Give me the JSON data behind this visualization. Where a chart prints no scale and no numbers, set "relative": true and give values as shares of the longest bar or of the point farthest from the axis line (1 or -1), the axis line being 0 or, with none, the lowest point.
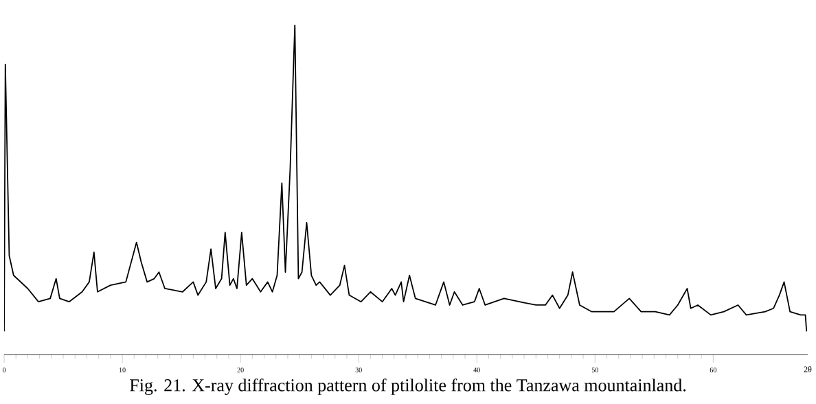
{
  "chart_data": {
    "type": "line",
    "title": "Fig. 21.  X-ray diffraction pattern of ptilolite from the Tanzawa mountainland.",
    "xlabel": "2θ",
    "relative": true,
    "xlim": [
      0,
      68
    ],
    "xticks": [
      0,
      10,
      20,
      30,
      40,
      50,
      60
    ],
    "grid": false,
    "marker": "none",
    "line_style": "solid",
    "x": [
      0,
      0.1,
      0.43,
      0.8,
      2.0,
      2.9,
      3.9,
      4.4,
      4.7,
      5.5,
      6.6,
      7.2,
      7.6,
      7.9,
      9.0,
      10.3,
      11.2,
      11.6,
      12.1,
      12.7,
      13.1,
      13.6,
      15.1,
      16.0,
      16.4,
      17.1,
      17.5,
      17.9,
      18.4,
      18.7,
      19.1,
      19.4,
      19.7,
      20.1,
      20.5,
      21.0,
      21.7,
      22.3,
      22.7,
      23.1,
      23.5,
      23.8,
      24.2,
      24.6,
      24.9,
      25.2,
      25.6,
      26.0,
      26.4,
      26.7,
      27.6,
      28.4,
      28.8,
      29.2,
      30.2,
      31.0,
      32.0,
      32.8,
      33.1,
      33.6,
      33.8,
      34.3,
      34.8,
      36.5,
      37.2,
      37.7,
      38.1,
      38.8,
      39.8,
      40.2,
      40.7,
      42.3,
      43.6,
      45.0,
      45.8,
      46.4,
      47.0,
      47.7,
      48.1,
      48.7,
      49.7,
      51.6,
      52.9,
      53.9,
      55.1,
      56.3,
      57.0,
      57.8,
      58.1,
      58.7,
      59.8,
      60.9,
      62.1,
      62.8,
      64.4,
      65.1,
      65.6,
      66.0,
      66.5,
      67.4,
      67.8,
      67.9
    ],
    "series": [
      {
        "color": "#000000",
        "values": [
          0.07,
          0.88,
          0.3,
          0.24,
          0.2,
          0.16,
          0.17,
          0.23,
          0.17,
          0.16,
          0.19,
          0.22,
          0.31,
          0.19,
          0.21,
          0.22,
          0.34,
          0.28,
          0.22,
          0.23,
          0.25,
          0.2,
          0.19,
          0.22,
          0.18,
          0.22,
          0.32,
          0.2,
          0.23,
          0.37,
          0.21,
          0.23,
          0.2,
          0.37,
          0.21,
          0.23,
          0.19,
          0.22,
          0.19,
          0.24,
          0.52,
          0.25,
          0.56,
          1.0,
          0.23,
          0.25,
          0.4,
          0.24,
          0.21,
          0.22,
          0.18,
          0.21,
          0.27,
          0.18,
          0.16,
          0.19,
          0.16,
          0.2,
          0.18,
          0.22,
          0.16,
          0.24,
          0.17,
          0.15,
          0.22,
          0.15,
          0.19,
          0.15,
          0.16,
          0.2,
          0.15,
          0.17,
          0.16,
          0.15,
          0.15,
          0.18,
          0.14,
          0.18,
          0.25,
          0.15,
          0.13,
          0.13,
          0.17,
          0.13,
          0.13,
          0.12,
          0.15,
          0.2,
          0.14,
          0.15,
          0.12,
          0.13,
          0.15,
          0.12,
          0.13,
          0.14,
          0.18,
          0.22,
          0.13,
          0.12,
          0.12,
          0.07
        ]
      }
    ]
  }
}
